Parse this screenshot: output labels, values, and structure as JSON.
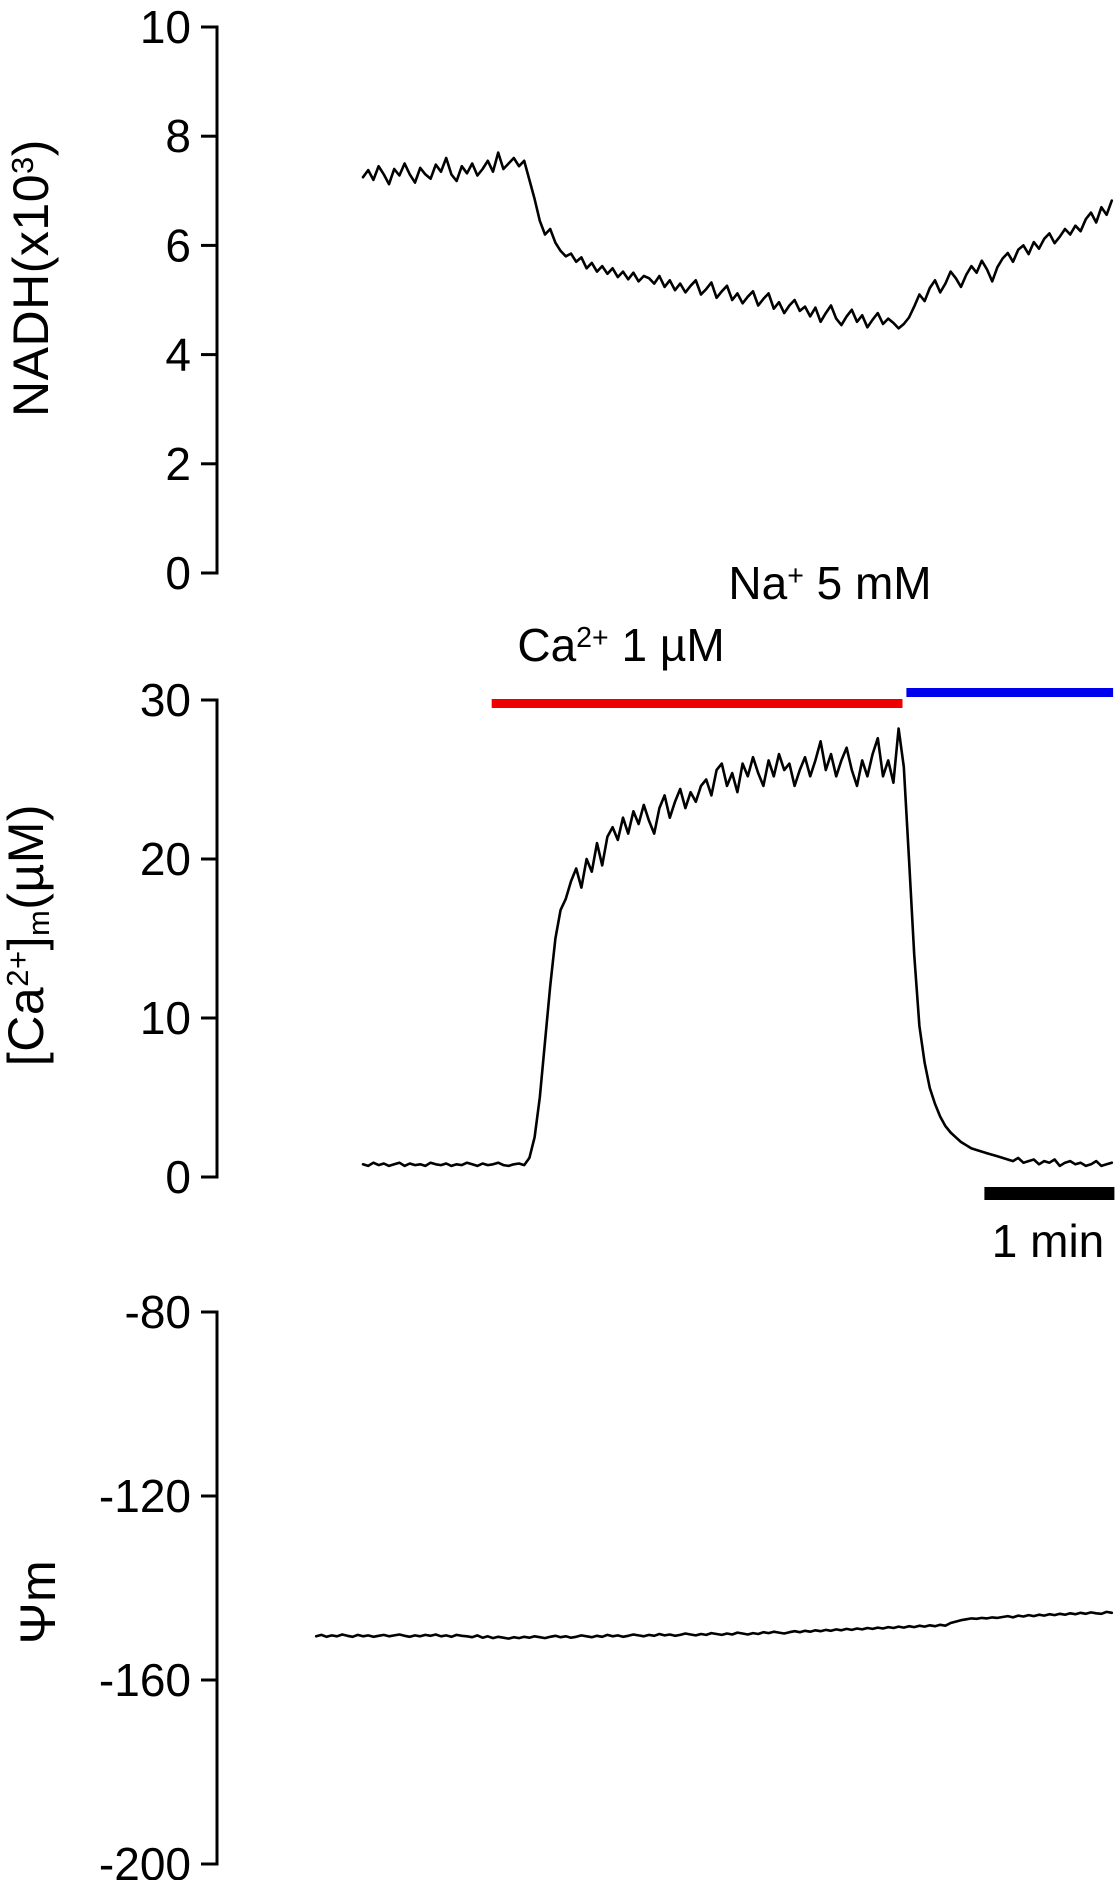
{
  "figure": {
    "background": "#ffffff",
    "colors": {
      "trace": "#000000",
      "axis": "#000000",
      "ca_bar": "#ee0000",
      "na_bar": "#0000ee",
      "scale_bar": "#000000"
    }
  },
  "chart_data": [
    {
      "id": "nadh",
      "type": "line",
      "ylabel_plain": "NADH(x10^3)",
      "ylabel_parts": [
        {
          "text": "NADH(x10"
        },
        {
          "text": "3",
          "sup": true
        },
        {
          "text": ")"
        }
      ],
      "ylim": [
        0,
        10
      ],
      "yticks": [
        0,
        2,
        4,
        6,
        8,
        10
      ],
      "x_unit": "min",
      "grid": false,
      "series": [
        {
          "name": "NADH",
          "color": "#000000",
          "t0": 0,
          "dt": 0.04,
          "values": [
            7.25,
            7.38,
            7.2,
            7.45,
            7.3,
            7.12,
            7.4,
            7.28,
            7.5,
            7.3,
            7.15,
            7.42,
            7.3,
            7.22,
            7.48,
            7.35,
            7.6,
            7.3,
            7.18,
            7.45,
            7.32,
            7.5,
            7.28,
            7.4,
            7.55,
            7.35,
            7.7,
            7.4,
            7.5,
            7.6,
            7.45,
            7.55,
            7.2,
            6.85,
            6.45,
            6.2,
            6.3,
            6.05,
            5.9,
            5.8,
            5.85,
            5.7,
            5.78,
            5.58,
            5.68,
            5.52,
            5.62,
            5.48,
            5.58,
            5.42,
            5.52,
            5.38,
            5.5,
            5.34,
            5.44,
            5.4,
            5.3,
            5.44,
            5.24,
            5.36,
            5.18,
            5.3,
            5.14,
            5.26,
            5.36,
            5.1,
            5.2,
            5.32,
            5.04,
            5.16,
            5.26,
            5.0,
            5.12,
            4.94,
            5.06,
            5.16,
            4.9,
            5.02,
            5.12,
            4.84,
            4.96,
            4.76,
            4.9,
            5.0,
            4.8,
            4.88,
            4.7,
            4.86,
            4.6,
            4.76,
            4.9,
            4.66,
            4.54,
            4.7,
            4.82,
            4.6,
            4.72,
            4.5,
            4.64,
            4.76,
            4.56,
            4.66,
            4.58,
            4.48,
            4.56,
            4.68,
            4.88,
            5.1,
            4.98,
            5.22,
            5.36,
            5.14,
            5.3,
            5.52,
            5.4,
            5.24,
            5.46,
            5.62,
            5.5,
            5.72,
            5.56,
            5.34,
            5.6,
            5.76,
            5.86,
            5.7,
            5.92,
            6.0,
            5.84,
            6.06,
            5.94,
            6.12,
            6.22,
            6.04,
            6.16,
            6.3,
            6.2,
            6.36,
            6.26,
            6.48,
            6.6,
            6.42,
            6.7,
            6.56,
            6.82
          ]
        }
      ]
    },
    {
      "id": "ca",
      "type": "line",
      "ylabel_plain": "[Ca2+]m(uM)",
      "ylabel_parts": [
        {
          "text": "[Ca"
        },
        {
          "text": "2+",
          "sup": true
        },
        {
          "text": "]"
        },
        {
          "text": "m",
          "sub": true
        },
        {
          "text": "(µM)"
        }
      ],
      "ylim": [
        0,
        30
      ],
      "yticks": [
        0,
        10,
        20,
        30
      ],
      "x_unit": "min",
      "grid": false,
      "series": [
        {
          "name": "[Ca2+]m",
          "color": "#000000",
          "t0": 0,
          "dt": 0.04,
          "values": [
            0.8,
            0.7,
            0.9,
            0.75,
            0.85,
            0.7,
            0.8,
            0.9,
            0.7,
            0.85,
            0.75,
            0.8,
            0.7,
            0.9,
            0.8,
            0.75,
            0.85,
            0.7,
            0.8,
            0.75,
            0.9,
            0.8,
            0.7,
            0.85,
            0.75,
            0.8,
            0.9,
            0.75,
            0.7,
            0.8,
            0.85,
            0.75,
            1.2,
            2.5,
            5.0,
            8.5,
            12.0,
            15.0,
            16.8,
            17.5,
            18.6,
            19.4,
            18.2,
            20.0,
            19.2,
            21.0,
            19.6,
            21.4,
            22.0,
            21.2,
            22.6,
            21.6,
            23.0,
            22.2,
            23.4,
            22.4,
            21.6,
            23.2,
            24.0,
            22.6,
            23.6,
            24.4,
            23.2,
            24.2,
            23.6,
            24.6,
            25.0,
            24.0,
            25.6,
            26.0,
            24.6,
            25.4,
            24.2,
            26.0,
            25.2,
            26.4,
            25.4,
            24.6,
            26.2,
            25.2,
            26.6,
            25.6,
            26.0,
            24.6,
            25.6,
            26.4,
            25.2,
            26.2,
            27.4,
            25.6,
            26.6,
            25.2,
            26.2,
            27.0,
            25.6,
            24.6,
            26.2,
            25.2,
            26.6,
            27.6,
            25.2,
            26.2,
            24.8,
            28.2,
            25.8,
            20.0,
            14.0,
            9.5,
            7.2,
            5.6,
            4.6,
            3.8,
            3.2,
            2.8,
            2.5,
            2.2,
            2.0,
            1.8,
            1.7,
            1.6,
            1.5,
            1.4,
            1.3,
            1.2,
            1.1,
            1.0,
            1.2,
            0.9,
            1.0,
            1.1,
            0.8,
            1.0,
            0.9,
            1.1,
            0.7,
            0.9,
            1.0,
            0.8,
            0.9,
            0.7,
            0.8,
            1.0,
            0.7,
            0.8,
            0.9
          ]
        }
      ],
      "annotations": [
        {
          "type": "bar",
          "label_plain": "Ca2+ 1 µM",
          "label_parts": [
            {
              "text": "Ca"
            },
            {
              "text": "2+",
              "sup": true
            },
            {
              "text": " 1 µM"
            }
          ],
          "color": "#ee0000",
          "t_start": 0.99,
          "t_end": 4.15
        },
        {
          "type": "bar",
          "label_plain": "Na+ 5 mM",
          "label_parts": [
            {
              "text": "Na"
            },
            {
              "text": "+",
              "sup": true
            },
            {
              "text": " 5 mM"
            }
          ],
          "color": "#0000ee",
          "t_start": 4.18,
          "t_end": 5.77
        },
        {
          "type": "scalebar",
          "label": "1 min",
          "color": "#000000",
          "t_start": 4.78,
          "t_end": 5.78,
          "duration_min": 1
        }
      ]
    },
    {
      "id": "psi",
      "type": "line",
      "ylabel_plain": "Psi m",
      "ylabel_parts": [
        {
          "text": "Ψm"
        }
      ],
      "ylim": [
        -200,
        -80
      ],
      "yticks": [
        -200,
        -160,
        -120,
        -80
      ],
      "x_unit": "min",
      "grid": false,
      "series": [
        {
          "name": "Psi m",
          "color": "#000000",
          "t0": -0.36,
          "dt": 0.04,
          "values": [
            -150.5,
            -150.2,
            -150.6,
            -150.3,
            -150.5,
            -150.1,
            -150.4,
            -150.6,
            -150.2,
            -150.5,
            -150.3,
            -150.6,
            -150.4,
            -150.2,
            -150.5,
            -150.3,
            -150.1,
            -150.4,
            -150.6,
            -150.3,
            -150.5,
            -150.2,
            -150.4,
            -150.1,
            -150.5,
            -150.3,
            -150.6,
            -150.2,
            -150.4,
            -150.5,
            -150.7,
            -150.3,
            -150.8,
            -150.5,
            -150.9,
            -150.6,
            -150.8,
            -151.0,
            -150.7,
            -150.9,
            -150.6,
            -150.8,
            -150.5,
            -150.7,
            -150.9,
            -150.6,
            -150.4,
            -150.7,
            -150.5,
            -150.8,
            -150.6,
            -150.3,
            -150.5,
            -150.7,
            -150.4,
            -150.6,
            -150.2,
            -150.5,
            -150.3,
            -150.6,
            -150.4,
            -150.1,
            -150.3,
            -150.5,
            -150.2,
            -150.4,
            -150.0,
            -150.3,
            -150.1,
            -150.4,
            -150.2,
            -149.9,
            -150.1,
            -150.3,
            -150.0,
            -150.2,
            -149.8,
            -150.0,
            -150.2,
            -149.9,
            -150.1,
            -149.7,
            -149.9,
            -150.1,
            -149.8,
            -150.0,
            -149.6,
            -149.8,
            -149.5,
            -149.7,
            -149.9,
            -149.6,
            -149.4,
            -149.6,
            -149.3,
            -149.5,
            -149.2,
            -149.4,
            -149.1,
            -149.3,
            -149.0,
            -149.2,
            -148.9,
            -149.1,
            -148.8,
            -149.0,
            -148.7,
            -148.9,
            -148.6,
            -148.8,
            -148.5,
            -148.7,
            -148.4,
            -148.6,
            -148.3,
            -148.5,
            -148.2,
            -148.4,
            -148.1,
            -148.3,
            -148.0,
            -148.2,
            -147.6,
            -147.3,
            -147.0,
            -146.8,
            -146.6,
            -146.7,
            -146.5,
            -146.6,
            -146.4,
            -146.5,
            -146.3,
            -146.1,
            -146.4,
            -146.0,
            -146.2,
            -145.9,
            -146.1,
            -145.8,
            -146.0,
            -145.7,
            -145.9,
            -145.6,
            -145.8,
            -145.5,
            -145.7,
            -145.4,
            -145.6,
            -145.3,
            -145.5,
            -145.6,
            -145.2,
            -145.4
          ]
        }
      ]
    }
  ]
}
